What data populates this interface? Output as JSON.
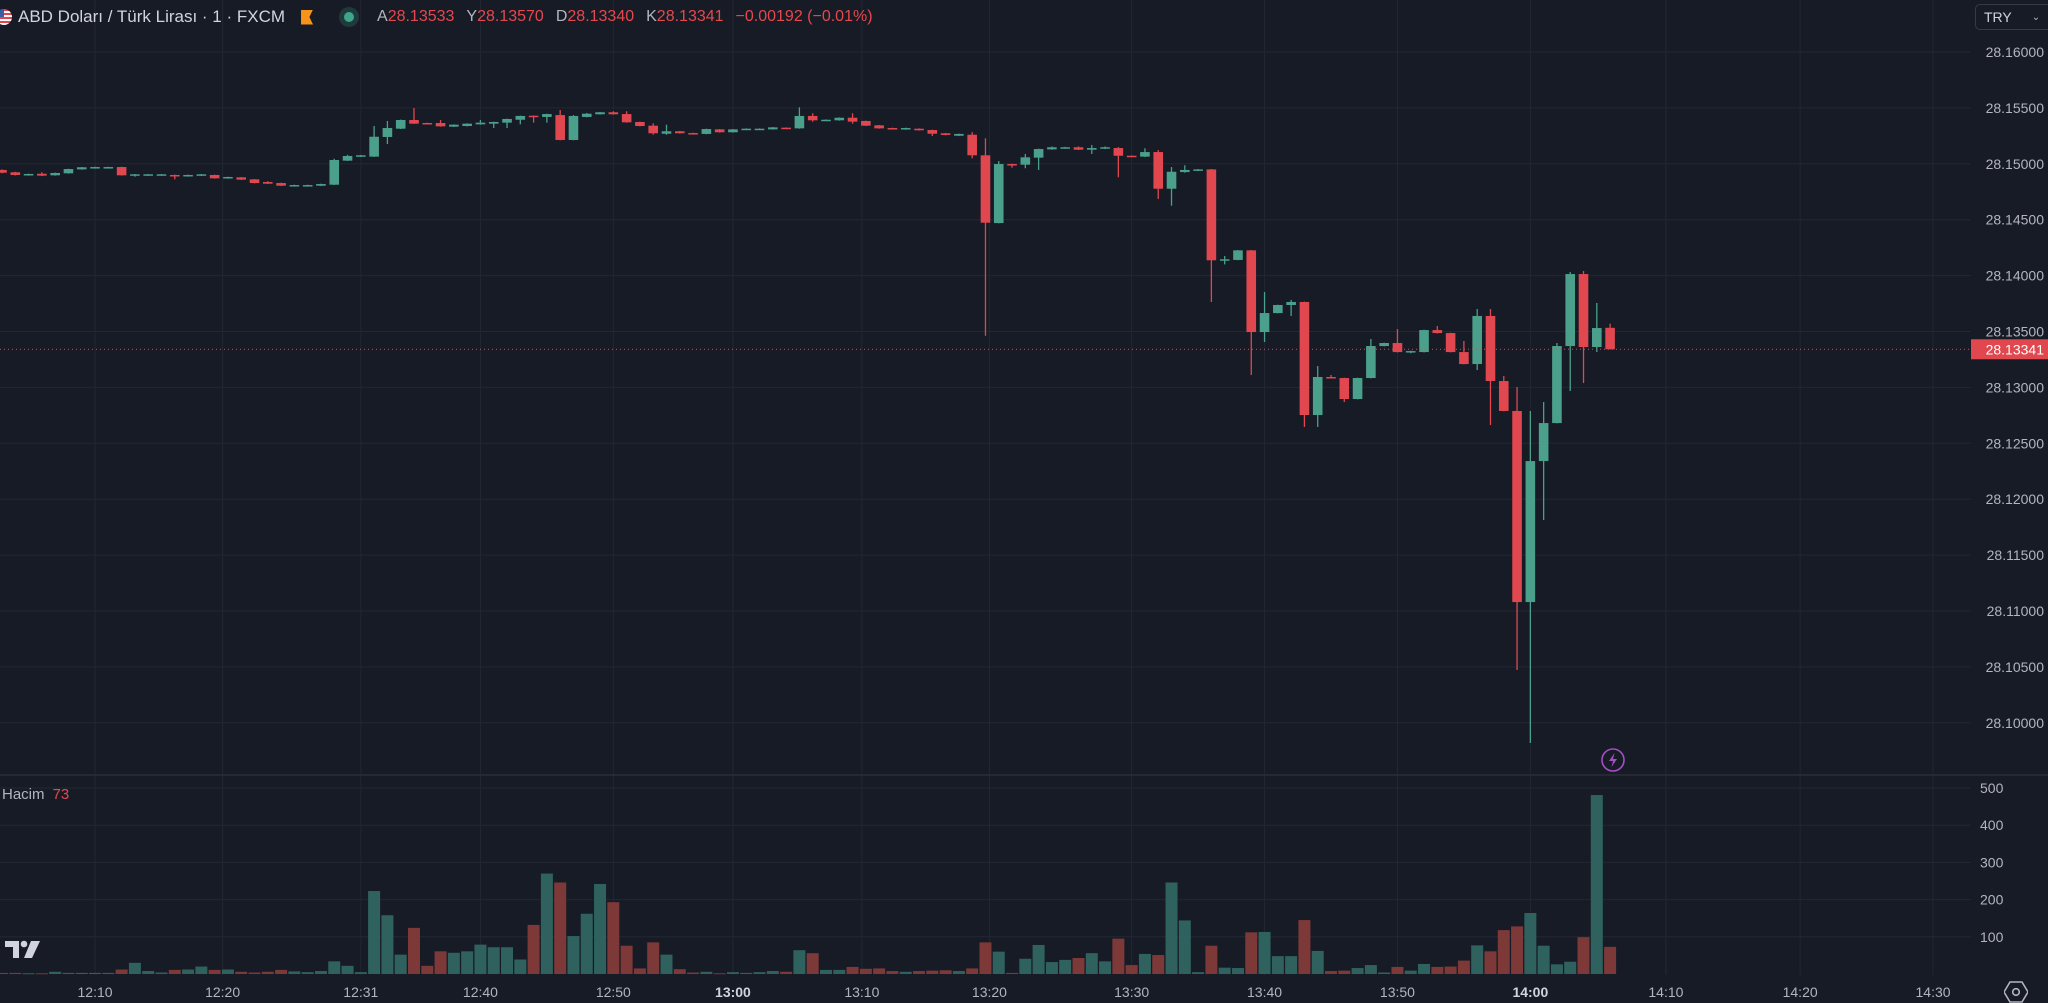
{
  "header": {
    "symbol_title": "ABD Doları / Türk Lirası · 1 · FXCM",
    "open_label": "A",
    "open_value": "28.13533",
    "high_label": "Y",
    "high_value": "28.13570",
    "low_label": "D",
    "low_value": "28.13340",
    "close_label": "K",
    "close_value": "28.13341",
    "change": "−0.00192 (−0.01%)"
  },
  "currency_select": {
    "value": "TRY"
  },
  "volume_legend": {
    "label": "Hacim",
    "value": "73"
  },
  "colors": {
    "up": "#4aa08a",
    "down": "#e0474f",
    "vol_up": "#2f625f",
    "vol_down": "#7d3838",
    "grid": "#232733",
    "bg": "#171b26",
    "last_price": "#e0474f"
  },
  "chart_data": {
    "type": "candlestick",
    "symbol": "USD/TRY",
    "interval": "1",
    "y_ticks": [
      "28.16000",
      "28.15500",
      "28.15000",
      "28.14500",
      "28.14000",
      "28.13500",
      "28.13000",
      "28.12500",
      "28.12000",
      "28.11500",
      "28.11000",
      "28.10500",
      "28.10000"
    ],
    "ylim": [
      28.0965,
      28.1647
    ],
    "last_price": "28.13341",
    "volume_ticks": [
      "100",
      "200",
      "300",
      "400",
      "500"
    ],
    "volume_max": 535,
    "x_ticks": [
      {
        "label": "12:10",
        "bar": 7,
        "bold": false
      },
      {
        "label": "12:20",
        "bar": 16.6,
        "bold": false
      },
      {
        "label": "12:31",
        "bar": 27,
        "bold": false
      },
      {
        "label": "12:40",
        "bar": 36,
        "bold": false
      },
      {
        "label": "12:50",
        "bar": 46,
        "bold": false
      },
      {
        "label": "13:00",
        "bar": 55,
        "bold": true
      },
      {
        "label": "13:10",
        "bar": 64.7,
        "bold": false
      },
      {
        "label": "13:20",
        "bar": 74.3,
        "bold": false
      },
      {
        "label": "13:30",
        "bar": 85,
        "bold": false
      },
      {
        "label": "13:40",
        "bar": 95,
        "bold": false
      },
      {
        "label": "13:50",
        "bar": 105,
        "bold": false
      },
      {
        "label": "14:00",
        "bar": 115,
        "bold": true
      },
      {
        "label": "14:10",
        "bar": 125.2,
        "bold": false
      },
      {
        "label": "14:20",
        "bar": 135.3,
        "bold": false
      },
      {
        "label": "14:30",
        "bar": 145.3,
        "bold": false
      }
    ],
    "columns": [
      "open",
      "high",
      "low",
      "close",
      "volume"
    ],
    "candles": [
      [
        28.14945,
        28.1495,
        28.14915,
        28.1492,
        3
      ],
      [
        28.14924,
        28.14928,
        28.14896,
        28.149,
        3
      ],
      [
        28.14897,
        28.14912,
        28.14894,
        28.14909,
        2
      ],
      [
        28.14911,
        28.14925,
        28.1489,
        28.14894,
        2
      ],
      [
        28.14897,
        28.14921,
        28.14894,
        28.14918,
        6
      ],
      [
        28.14915,
        28.14956,
        28.14912,
        28.14953,
        3
      ],
      [
        28.1495,
        28.14972,
        28.14947,
        28.14969,
        3
      ],
      [
        28.1496,
        28.14974,
        28.14957,
        28.14971,
        3
      ],
      [
        28.14965,
        28.14974,
        28.14962,
        28.14971,
        3
      ],
      [
        28.14971,
        28.14974,
        28.14894,
        28.14897,
        12
      ],
      [
        28.14897,
        28.14909,
        28.14885,
        28.14906,
        30
      ],
      [
        28.14897,
        28.14909,
        28.14894,
        28.14906,
        8
      ],
      [
        28.14897,
        28.14909,
        28.14894,
        28.14906,
        4
      ],
      [
        28.149,
        28.14903,
        28.14861,
        28.14888,
        11
      ],
      [
        28.14888,
        28.14903,
        28.14885,
        28.149,
        12
      ],
      [
        28.14894,
        28.14909,
        28.14891,
        28.14906,
        20
      ],
      [
        28.149,
        28.14903,
        28.14867,
        28.1487,
        11
      ],
      [
        28.1487,
        28.14885,
        28.14867,
        28.14882,
        12
      ],
      [
        28.14879,
        28.14882,
        28.14855,
        28.14858,
        6
      ],
      [
        28.14861,
        28.14864,
        28.14825,
        28.14828,
        4
      ],
      [
        28.14837,
        28.14845,
        28.14819,
        28.14822,
        6
      ],
      [
        28.14828,
        28.14831,
        28.14801,
        28.14804,
        11
      ],
      [
        28.14799,
        28.14813,
        28.14796,
        28.1481,
        7
      ],
      [
        28.14799,
        28.14813,
        28.14796,
        28.1481,
        5
      ],
      [
        28.14804,
        28.14822,
        28.14801,
        28.14819,
        8
      ],
      [
        28.14813,
        28.15045,
        28.1481,
        28.15034,
        34
      ],
      [
        28.15028,
        28.1508,
        28.15025,
        28.1507,
        22
      ],
      [
        28.15064,
        28.15079,
        28.15061,
        28.15076,
        5
      ],
      [
        28.15064,
        28.15338,
        28.15061,
        28.15242,
        223
      ],
      [
        28.1524,
        28.15383,
        28.15177,
        28.1532,
        158
      ],
      [
        28.15314,
        28.15395,
        28.15311,
        28.15392,
        52
      ],
      [
        28.15392,
        28.15499,
        28.15356,
        28.15359,
        124
      ],
      [
        28.15365,
        28.15368,
        28.15353,
        28.15356,
        22
      ],
      [
        28.15365,
        28.15392,
        28.15332,
        28.15335,
        61
      ],
      [
        28.15332,
        28.15353,
        28.15329,
        28.1535,
        57
      ],
      [
        28.15338,
        28.15362,
        28.15335,
        28.15359,
        61
      ],
      [
        28.15353,
        28.15392,
        28.1535,
        28.15368,
        79
      ],
      [
        28.15359,
        28.15377,
        28.1532,
        28.15374,
        72
      ],
      [
        28.15368,
        28.15404,
        28.1532,
        28.15401,
        72
      ],
      [
        28.15394,
        28.15431,
        28.15353,
        28.15428,
        39
      ],
      [
        28.1543,
        28.15433,
        28.15368,
        28.15421,
        132
      ],
      [
        28.15419,
        28.15448,
        28.15368,
        28.15445,
        270
      ],
      [
        28.15436,
        28.15481,
        28.1521,
        28.15213,
        246
      ],
      [
        28.15213,
        28.15436,
        28.1521,
        28.15428,
        102
      ],
      [
        28.15419,
        28.15455,
        28.15416,
        28.15448,
        162
      ],
      [
        28.15443,
        28.15464,
        28.1544,
        28.15461,
        242
      ],
      [
        28.15461,
        28.1547,
        28.1544,
        28.15443,
        193
      ],
      [
        28.15445,
        28.1547,
        28.15368,
        28.15371,
        76
      ],
      [
        28.15374,
        28.15377,
        28.15335,
        28.15338,
        15
      ],
      [
        28.15341,
        28.15362,
        28.1526,
        28.15273,
        85
      ],
      [
        28.15269,
        28.1535,
        28.1526,
        28.15291,
        52
      ],
      [
        28.15291,
        28.15294,
        28.1527,
        28.15273,
        13
      ],
      [
        28.15275,
        28.15278,
        28.15261,
        28.15264,
        4
      ],
      [
        28.15267,
        28.15314,
        28.15264,
        28.15311,
        6
      ],
      [
        28.15308,
        28.15311,
        28.15279,
        28.15282,
        2
      ],
      [
        28.15282,
        28.15311,
        28.15279,
        28.15308,
        5
      ],
      [
        28.15305,
        28.15317,
        28.15302,
        28.15314,
        3
      ],
      [
        28.15305,
        28.15317,
        28.15302,
        28.15314,
        5
      ],
      [
        28.15308,
        28.15329,
        28.15305,
        28.15326,
        8
      ],
      [
        28.15323,
        28.15326,
        28.15311,
        28.15314,
        6
      ],
      [
        28.15317,
        28.15505,
        28.15314,
        28.15428,
        64
      ],
      [
        28.15428,
        28.15452,
        28.15376,
        28.15389,
        56
      ],
      [
        28.15386,
        28.15397,
        28.15383,
        28.15394,
        11
      ],
      [
        28.15389,
        28.15415,
        28.15386,
        28.15412,
        11
      ],
      [
        28.15412,
        28.15452,
        28.15359,
        28.15377,
        19
      ],
      [
        28.15383,
        28.15386,
        28.15338,
        28.15341,
        14
      ],
      [
        28.15344,
        28.15347,
        28.15314,
        28.15317,
        15
      ],
      [
        28.1532,
        28.15323,
        28.15311,
        28.15314,
        8
      ],
      [
        28.15308,
        28.15323,
        28.15305,
        28.1532,
        6
      ],
      [
        28.15314,
        28.15317,
        28.15297,
        28.153,
        8
      ],
      [
        28.15302,
        28.15305,
        28.15249,
        28.15269,
        9
      ],
      [
        28.15273,
        28.15276,
        28.15255,
        28.15258,
        10
      ],
      [
        28.15251,
        28.1527,
        28.15248,
        28.15267,
        8
      ],
      [
        28.1526,
        28.15284,
        28.15049,
        28.15076,
        15
      ],
      [
        28.15076,
        28.15228,
        28.13462,
        28.14473,
        85
      ],
      [
        28.1447,
        28.15025,
        28.14467,
        28.14998,
        60
      ],
      [
        28.14998,
        28.15001,
        28.14965,
        28.14992,
        3
      ],
      [
        28.14992,
        28.15088,
        28.1496,
        28.15058,
        41
      ],
      [
        28.15055,
        28.15135,
        28.14945,
        28.15132,
        78
      ],
      [
        28.15129,
        28.15155,
        28.15126,
        28.15148,
        32
      ],
      [
        28.15139,
        28.15151,
        28.15136,
        28.15148,
        38
      ],
      [
        28.15148,
        28.15155,
        28.15123,
        28.15126,
        43
      ],
      [
        28.15126,
        28.15168,
        28.15088,
        28.15141,
        56
      ],
      [
        28.15135,
        28.15155,
        28.15132,
        28.15148,
        34
      ],
      [
        28.15141,
        28.1515,
        28.14879,
        28.15072,
        95
      ],
      [
        28.15072,
        28.15075,
        28.15061,
        28.15064,
        24
      ],
      [
        28.15064,
        28.15139,
        28.15061,
        28.15105,
        54
      ],
      [
        28.15105,
        28.15123,
        28.14685,
        28.14777,
        51
      ],
      [
        28.14777,
        28.14971,
        28.14625,
        28.14929,
        246
      ],
      [
        28.14926,
        28.14987,
        28.1492,
        28.14945,
        144
      ],
      [
        28.14938,
        28.14953,
        28.14935,
        28.1495,
        5
      ],
      [
        28.1495,
        28.14953,
        28.13764,
        28.14137,
        76
      ],
      [
        28.14137,
        28.14175,
        28.141,
        28.14146,
        17
      ],
      [
        28.1414,
        28.14229,
        28.14137,
        28.14226,
        16
      ],
      [
        28.14226,
        28.14229,
        28.13111,
        28.13495,
        112
      ],
      [
        28.13495,
        28.13853,
        28.13406,
        28.13665,
        113
      ],
      [
        28.13665,
        28.1374,
        28.13662,
        28.13737,
        48
      ],
      [
        28.13737,
        28.13782,
        28.13639,
        28.13764,
        48
      ],
      [
        28.13764,
        28.13767,
        28.12646,
        28.12753,
        145
      ],
      [
        28.12753,
        28.13191,
        28.12646,
        28.13093,
        62
      ],
      [
        28.13093,
        28.13111,
        28.1308,
        28.13084,
        8
      ],
      [
        28.13084,
        28.13087,
        28.12869,
        28.12896,
        9
      ],
      [
        28.12896,
        28.13087,
        28.12893,
        28.13084,
        16
      ],
      [
        28.13084,
        28.13433,
        28.13081,
        28.1337,
        24
      ],
      [
        28.1337,
        28.134,
        28.13367,
        28.13397,
        4
      ],
      [
        28.13397,
        28.13522,
        28.13313,
        28.13316,
        19
      ],
      [
        28.13316,
        28.13328,
        28.13305,
        28.13325,
        9
      ],
      [
        28.13316,
        28.13516,
        28.13313,
        28.13513,
        27
      ],
      [
        28.13513,
        28.13549,
        28.13483,
        28.13486,
        19
      ],
      [
        28.13486,
        28.13489,
        28.13313,
        28.13316,
        20
      ],
      [
        28.13316,
        28.13415,
        28.13206,
        28.13209,
        36
      ],
      [
        28.13209,
        28.13701,
        28.13155,
        28.13639,
        77
      ],
      [
        28.13639,
        28.13701,
        28.12664,
        28.13057,
        61
      ],
      [
        28.13057,
        28.13102,
        28.12786,
        28.12789,
        118
      ],
      [
        28.12789,
        28.13003,
        28.10472,
        28.1108,
        128
      ],
      [
        28.1108,
        28.12789,
        28.09819,
        28.12341,
        164
      ],
      [
        28.12341,
        28.12869,
        28.11814,
        28.12681,
        76
      ],
      [
        28.12681,
        28.13397,
        28.12678,
        28.1337,
        26
      ],
      [
        28.1337,
        28.14032,
        28.12968,
        28.14014,
        33
      ],
      [
        28.14014,
        28.14041,
        28.13039,
        28.13361,
        99
      ],
      [
        28.13361,
        28.13755,
        28.13316,
        28.13531,
        481
      ],
      [
        28.13533,
        28.1357,
        28.1334,
        28.13341,
        73
      ]
    ]
  }
}
